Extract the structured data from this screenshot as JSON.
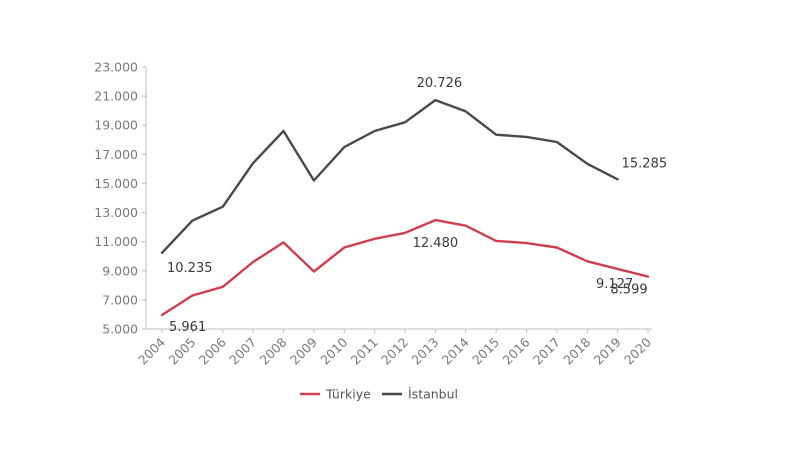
{
  "chart_data": {
    "type": "line",
    "title": "",
    "xlabel": "",
    "ylabel": "",
    "categories": [
      "2004",
      "2005",
      "2006",
      "2007",
      "2008",
      "2009",
      "2010",
      "2011",
      "2012",
      "2013",
      "2014",
      "2015",
      "2016",
      "2017",
      "2018",
      "2019",
      "2020"
    ],
    "ylim": [
      5000,
      23000
    ],
    "yticks": [
      "5.000",
      "7.000",
      "9.000",
      "11.000",
      "13.000",
      "15.000",
      "17.000",
      "19.000",
      "21.000",
      "23.000"
    ],
    "ytick_values": [
      5000,
      7000,
      9000,
      11000,
      13000,
      15000,
      17000,
      19000,
      21000,
      23000
    ],
    "grid": false,
    "legend_position": "bottom",
    "series": [
      {
        "name": "Türkiye",
        "color": "#cf3f4f",
        "values": [
          5961,
          7300,
          7900,
          9600,
          10950,
          8950,
          10600,
          11200,
          11600,
          12480,
          12100,
          11050,
          10900,
          10600,
          9650,
          9127,
          8599
        ]
      },
      {
        "name": "İstanbul",
        "color": "#4a4a4a",
        "values": [
          10235,
          12450,
          13400,
          16400,
          18600,
          15200,
          17500,
          18600,
          19200,
          20726,
          19950,
          18350,
          18200,
          17850,
          16350,
          15285,
          null
        ]
      }
    ],
    "annotations": [
      {
        "series": 0,
        "index": 0,
        "text": "5.961"
      },
      {
        "series": 0,
        "index": 9,
        "text": "12.480"
      },
      {
        "series": 0,
        "index": 15,
        "text": "9.127"
      },
      {
        "series": 0,
        "index": 16,
        "text": "8.599"
      },
      {
        "series": 1,
        "index": 0,
        "text": "10.235"
      },
      {
        "series": 1,
        "index": 9,
        "text": "20.726"
      },
      {
        "series": 1,
        "index": 15,
        "text": "15.285"
      }
    ]
  }
}
